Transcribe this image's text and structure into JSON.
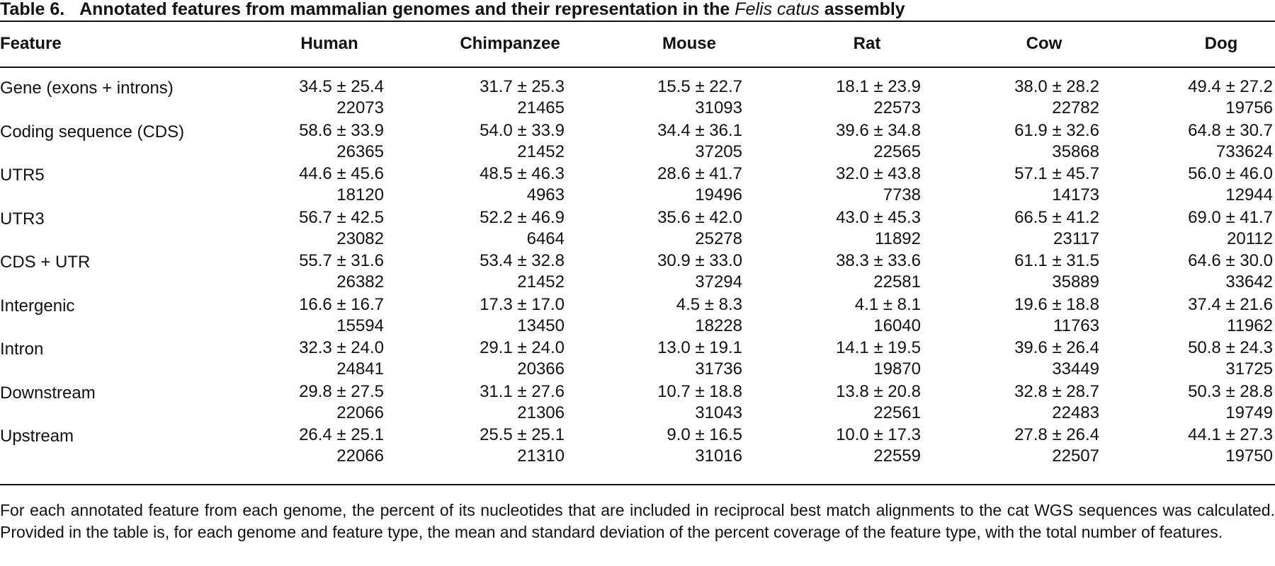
{
  "table": {
    "number": "Table 6.",
    "title_before": "Annotated features from mammalian genomes and their representation in the",
    "title_italic": "Felis catus",
    "title_after": "assembly",
    "columns": [
      "Feature",
      "Human",
      "Chimpanzee",
      "Mouse",
      "Rat",
      "Cow",
      "Dog"
    ],
    "rows": [
      {
        "feature": "Gene (exons + introns)",
        "cells": [
          {
            "stat": "34.5 ± 25.4",
            "count": "22073"
          },
          {
            "stat": "31.7 ± 25.3",
            "count": "21465"
          },
          {
            "stat": "15.5 ± 22.7",
            "count": "31093"
          },
          {
            "stat": "18.1 ± 23.9",
            "count": "22573"
          },
          {
            "stat": "38.0 ± 28.2",
            "count": "22782"
          },
          {
            "stat": "49.4 ± 27.2",
            "count": "19756"
          }
        ]
      },
      {
        "feature": "Coding sequence (CDS)",
        "cells": [
          {
            "stat": "58.6 ± 33.9",
            "count": "26365"
          },
          {
            "stat": "54.0 ± 33.9",
            "count": "21452"
          },
          {
            "stat": "34.4 ± 36.1",
            "count": "37205"
          },
          {
            "stat": "39.6 ± 34.8",
            "count": "22565"
          },
          {
            "stat": "61.9 ± 32.6",
            "count": "35868"
          },
          {
            "stat": "64.8 ± 30.7",
            "count": "733624"
          }
        ]
      },
      {
        "feature": "UTR5",
        "cells": [
          {
            "stat": "44.6 ± 45.6",
            "count": "18120"
          },
          {
            "stat": "48.5 ± 46.3",
            "count": "4963"
          },
          {
            "stat": "28.6 ± 41.7",
            "count": "19496"
          },
          {
            "stat": "32.0 ± 43.8",
            "count": "7738"
          },
          {
            "stat": "57.1 ± 45.7",
            "count": "14173"
          },
          {
            "stat": "56.0 ± 46.0",
            "count": "12944"
          }
        ]
      },
      {
        "feature": "UTR3",
        "cells": [
          {
            "stat": "56.7 ± 42.5",
            "count": "23082"
          },
          {
            "stat": "52.2 ± 46.9",
            "count": "6464"
          },
          {
            "stat": "35.6 ± 42.0",
            "count": "25278"
          },
          {
            "stat": "43.0 ± 45.3",
            "count": "11892"
          },
          {
            "stat": "66.5 ± 41.2",
            "count": "23117"
          },
          {
            "stat": "69.0 ± 41.7",
            "count": "20112"
          }
        ]
      },
      {
        "feature": "CDS + UTR",
        "cells": [
          {
            "stat": "55.7 ± 31.6",
            "count": "26382"
          },
          {
            "stat": "53.4 ± 32.8",
            "count": "21452"
          },
          {
            "stat": "30.9 ± 33.0",
            "count": "37294"
          },
          {
            "stat": "38.3 ± 33.6",
            "count": "22581"
          },
          {
            "stat": "61.1 ± 31.5",
            "count": "35889"
          },
          {
            "stat": "64.6 ± 30.0",
            "count": "33642"
          }
        ]
      },
      {
        "feature": "Intergenic",
        "cells": [
          {
            "stat": "16.6 ± 16.7",
            "count": "15594"
          },
          {
            "stat": "17.3 ± 17.0",
            "count": "13450"
          },
          {
            "stat": "4.5 ± 8.3",
            "count": "18228"
          },
          {
            "stat": "4.1 ± 8.1",
            "count": "16040"
          },
          {
            "stat": "19.6 ± 18.8",
            "count": "11763"
          },
          {
            "stat": "37.4 ± 21.6",
            "count": "11962"
          }
        ]
      },
      {
        "feature": "Intron",
        "cells": [
          {
            "stat": "32.3 ± 24.0",
            "count": "24841"
          },
          {
            "stat": "29.1 ± 24.0",
            "count": "20366"
          },
          {
            "stat": "13.0 ± 19.1",
            "count": "31736"
          },
          {
            "stat": "14.1 ± 19.5",
            "count": "19870"
          },
          {
            "stat": "39.6 ± 26.4",
            "count": "33449"
          },
          {
            "stat": "50.8 ± 24.3",
            "count": "31725"
          }
        ]
      },
      {
        "feature": "Downstream",
        "cells": [
          {
            "stat": "29.8 ± 27.5",
            "count": "22066"
          },
          {
            "stat": "31.1 ± 27.6",
            "count": "21306"
          },
          {
            "stat": "10.7 ± 18.8",
            "count": "31043"
          },
          {
            "stat": "13.8 ± 20.8",
            "count": "22561"
          },
          {
            "stat": "32.8 ± 28.7",
            "count": "22483"
          },
          {
            "stat": "50.3 ± 28.8",
            "count": "19749"
          }
        ]
      },
      {
        "feature": "Upstream",
        "cells": [
          {
            "stat": "26.4 ± 25.1",
            "count": "22066"
          },
          {
            "stat": "25.5 ± 25.1",
            "count": "21310"
          },
          {
            "stat": "9.0 ± 16.5",
            "count": "31016"
          },
          {
            "stat": "10.0 ± 17.3",
            "count": "22559"
          },
          {
            "stat": "27.8 ± 26.4",
            "count": "22507"
          },
          {
            "stat": "44.1 ± 27.3",
            "count": "19750"
          }
        ]
      }
    ],
    "footnote": "For each annotated feature from each genome, the percent of its nucleotides that are included in reciprocal best match alignments to the cat WGS sequences was calculated. Provided in the table is, for each genome and feature type, the mean and standard deviation of the percent coverage of the feature type, with the total number of features."
  }
}
